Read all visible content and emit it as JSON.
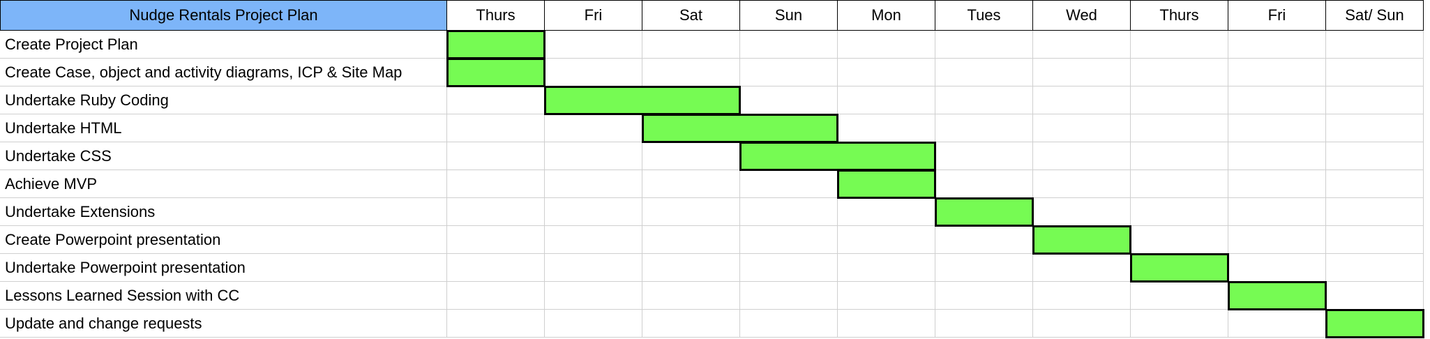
{
  "sheet": {
    "title": "Nudge Rentals Project Plan",
    "days": [
      "Thurs",
      "Fri",
      "Sat",
      "Sun",
      "Mon",
      "Tues",
      "Wed",
      "Thurs",
      "Fri",
      "Sat/ Sun"
    ]
  },
  "colors": {
    "title_fill": "#7db5f9",
    "bar_fill": "#76fb53",
    "grid_line": "#cfcfcf",
    "border": "#000000"
  },
  "tasks": [
    {
      "label": "Create Project Plan",
      "start_day": 0,
      "end_day": 0
    },
    {
      "label": "Create Case, object and activity diagrams, ICP & Site Map",
      "start_day": 0,
      "end_day": 0
    },
    {
      "label": "Undertake Ruby Coding",
      "start_day": 1,
      "end_day": 2
    },
    {
      "label": "Undertake HTML",
      "start_day": 2,
      "end_day": 3
    },
    {
      "label": "Undertake CSS",
      "start_day": 3,
      "end_day": 4
    },
    {
      "label": "Achieve MVP",
      "start_day": 4,
      "end_day": 4
    },
    {
      "label": "Undertake Extensions",
      "start_day": 5,
      "end_day": 5
    },
    {
      "label": "Create Powerpoint presentation",
      "start_day": 6,
      "end_day": 6
    },
    {
      "label": "Undertake Powerpoint presentation",
      "start_day": 7,
      "end_day": 7
    },
    {
      "label": "Lessons Learned Session with CC",
      "start_day": 8,
      "end_day": 8
    },
    {
      "label": "Update and change requests",
      "start_day": 9,
      "end_day": 9
    }
  ]
}
